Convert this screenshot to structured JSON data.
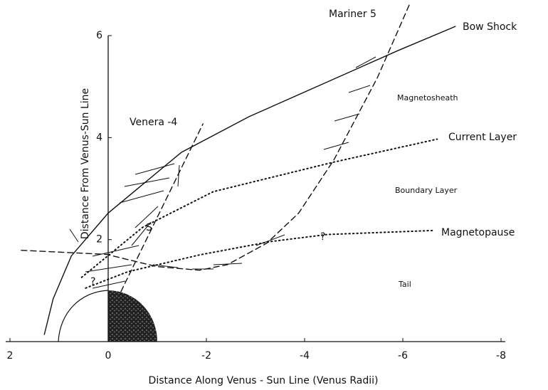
{
  "chart_data": {
    "type": "line",
    "x_label": "Distance Along Venus - Sun Line (Venus Radii)",
    "y_label": "Distance From Venus-Sun Line",
    "xlim": [
      2,
      -8
    ],
    "ylim": [
      0,
      6
    ],
    "xticks": [
      2,
      0,
      -2,
      -4,
      -6,
      -8
    ],
    "yticks": [
      2,
      4,
      6
    ],
    "series": [
      {
        "name": "Bow Shock",
        "color": "#111111",
        "style": "solid",
        "x": [
          1.3,
          1.12,
          0.75,
          0,
          -0.7,
          -1.49,
          -2.87,
          -4.32,
          -5.91,
          -7.07
        ],
        "values": [
          0.14,
          0.84,
          1.68,
          2.52,
          3.08,
          3.71,
          4.41,
          5.03,
          5.71,
          6.18
        ]
      },
      {
        "name": "Current Layer",
        "color": "#111111",
        "style": "dotted",
        "x": [
          0.54,
          -0.7,
          -2.14,
          -4.6,
          -6.7
        ],
        "values": [
          1.26,
          2.24,
          2.94,
          3.52,
          3.97
        ]
      },
      {
        "name": "Magnetopause",
        "color": "#111111",
        "style": "dotted",
        "x": [
          0.46,
          -0.4,
          -1.86,
          -3.3,
          -4.46,
          -6.64
        ],
        "values": [
          1.05,
          1.37,
          1.7,
          1.96,
          2.1,
          2.18
        ]
      },
      {
        "name": "Venera -4",
        "color": "#111111",
        "style": "dashed",
        "x": [
          -0.26,
          -1.93
        ],
        "values": [
          0.98,
          4.27
        ]
      },
      {
        "name": "Mariner 5",
        "color": "#111111",
        "style": "dashed",
        "x": [
          1.77,
          0.03,
          -0.99,
          -1.86,
          -2.43,
          -3.23,
          -3.88,
          -4.6,
          -5.48,
          -6.13
        ],
        "values": [
          1.79,
          1.71,
          1.47,
          1.4,
          1.51,
          1.93,
          2.52,
          3.57,
          5.17,
          6.6
        ]
      }
    ],
    "annotations": [
      "Magnetosheath",
      "Boundary Layer",
      "Tail",
      "?",
      "?",
      "S"
    ]
  }
}
